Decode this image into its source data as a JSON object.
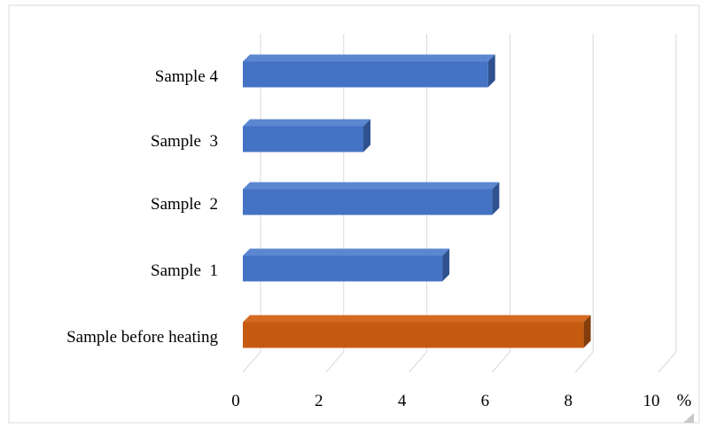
{
  "chart_data": {
    "type": "bar",
    "orientation": "horizontal",
    "style": "3d",
    "categories": [
      "Sample before heating",
      "Sample  1",
      "Sample  2",
      "Sample  3",
      "Sample 4"
    ],
    "values": [
      8.2,
      4.8,
      6.0,
      2.9,
      5.9
    ],
    "xlim": [
      0,
      10
    ],
    "xticks": [
      "0",
      "2",
      "4",
      "6",
      "8",
      "10"
    ],
    "x_unit": "%",
    "grid": true,
    "legend": "none",
    "colors": {
      "Sample before heating": "#C55A11",
      "Sample  1": "#4472C4",
      "Sample  2": "#4472C4",
      "Sample  3": "#4472C4",
      "Sample 4": "#4472C4"
    },
    "side_colors": {
      "#4472C4": "#2F528F",
      "#C55A11": "#843C0C"
    },
    "top_colors": {
      "#4472C4": "#5B87D1",
      "#C55A11": "#D46A22"
    }
  }
}
